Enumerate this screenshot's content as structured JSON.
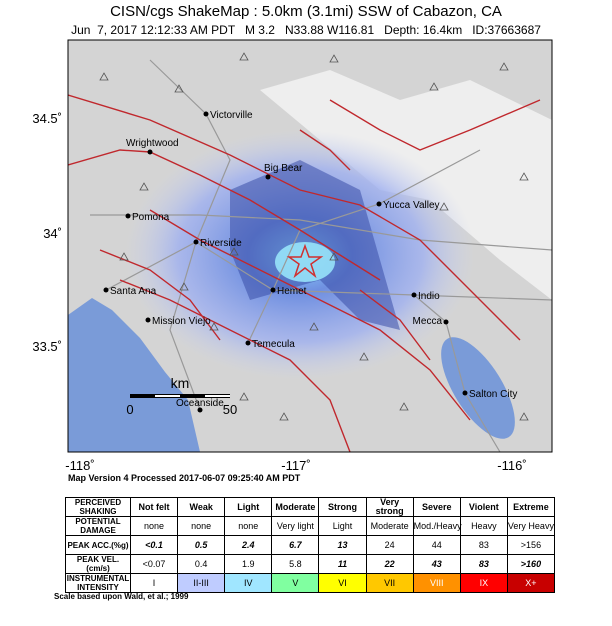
{
  "header": {
    "title": "CISN/cgs ShakeMap : 5.0km (3.1mi) SSW of Cabazon, CA",
    "subtitle": "Jun  7, 2017 12:12:33 AM PDT   M 3.2   N33.88 W116.81   Depth: 16.4km   ID:37663687"
  },
  "map": {
    "lat_labels": [
      "34.5˚",
      "34˚",
      "33.5˚"
    ],
    "lon_labels": [
      "-118˚",
      "-117˚",
      "-116˚"
    ],
    "cities": [
      "Victorville",
      "Wrightwood",
      "Big Bear",
      "Yucca Valley",
      "Pomona",
      "Riverside",
      "Santa Ana",
      "Hemet",
      "Indio",
      "Mission Viejo",
      "Mecca",
      "Temecula",
      "Oceanside",
      "Salton City"
    ],
    "scale": {
      "unit": "km",
      "ticks": [
        "0",
        "50"
      ]
    },
    "version": "Map Version 4 Processed 2017-06-07 09:25:40 AM PDT"
  },
  "table": {
    "rows": [
      [
        "PERCEIVED\nSHAKING",
        "Not felt",
        "Weak",
        "Light",
        "Moderate",
        "Strong",
        "Very strong",
        "Severe",
        "Violent",
        "Extreme"
      ],
      [
        "POTENTIAL\nDAMAGE",
        "none",
        "none",
        "none",
        "Very light",
        "Light",
        "Moderate",
        "Mod./Heavy",
        "Heavy",
        "Very Heavy"
      ],
      [
        "PEAK ACC.(%g)",
        "<0.1",
        "0.5",
        "2.4",
        "6.7",
        "13",
        "24",
        "44",
        "83",
        ">156"
      ],
      [
        "PEAK VEL.(cm/s)",
        "<0.07",
        "0.4",
        "1.9",
        "5.8",
        "11",
        "22",
        "43",
        "83",
        ">160"
      ],
      [
        "INSTRUMENTAL\nINTENSITY",
        "I",
        "II-III",
        "IV",
        "V",
        "VI",
        "VII",
        "VIII",
        "IX",
        "X+"
      ]
    ],
    "intensity_colors": [
      "#ffffff",
      "#bfccff",
      "#a0e6ff",
      "#80ffa0",
      "#ffff00",
      "#ffc800",
      "#ff9100",
      "#ff0000",
      "#c80000"
    ]
  },
  "footnote": "Scale based upon Wald, et al.; 1999"
}
